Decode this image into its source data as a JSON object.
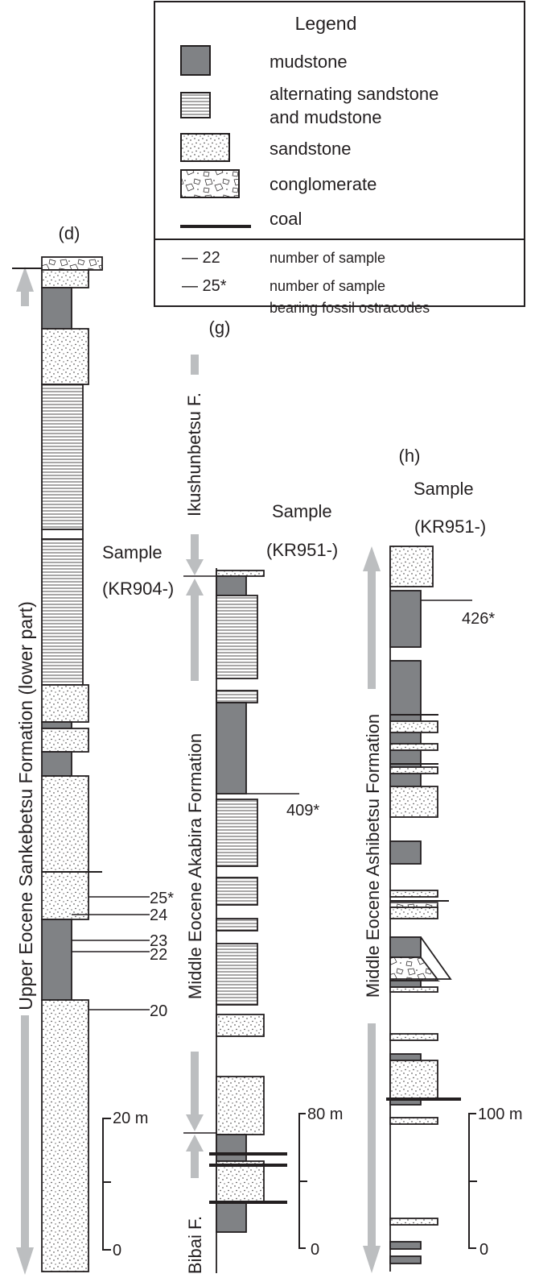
{
  "legend": {
    "title": "Legend",
    "items": [
      {
        "label_lines": [
          "mudstone"
        ]
      },
      {
        "label_lines": [
          "alternating sandstone",
          "and mudstone"
        ]
      },
      {
        "label_lines": [
          "sandstone"
        ]
      },
      {
        "label_lines": [
          "conglomerate"
        ]
      },
      {
        "label_lines": [
          "coal"
        ]
      },
      {
        "key": "— 22",
        "label_lines": [
          "number of sample"
        ]
      },
      {
        "key": "— 25*",
        "label_lines": [
          "number of sample",
          "bearing fossil ostracodes"
        ]
      }
    ]
  },
  "columns": [
    {
      "id": "d",
      "label": "(d)",
      "sample_labels": [],
      "formations": [
        "Upper Eocene Sankebetsu Formation (lower part)"
      ],
      "samples": [
        "25*",
        "24",
        "23",
        "22",
        "20"
      ],
      "scale": {
        "top": "20 m",
        "bottom": "0"
      }
    },
    {
      "id": "g",
      "label": "(g)",
      "sample_labels": [
        "Sample",
        "(KR904-)",
        "Sample",
        "(KR951-)"
      ],
      "formations": [
        "Ikushunbetsu F.",
        "Middle Eocene Akabira Formation",
        "Bibai F."
      ],
      "samples": [
        "409*"
      ],
      "scale": {
        "top": "80 m",
        "bottom": "0"
      }
    },
    {
      "id": "h",
      "label": "(h)",
      "sample_labels": [
        "Sample",
        "(KR951-)"
      ],
      "formations": [
        "Middle Eocene Ashibetsu Formation"
      ],
      "samples": [
        "426*"
      ],
      "scale": {
        "top": "100 m",
        "bottom": "0"
      }
    }
  ],
  "colors": {
    "mudstone": "#808285",
    "arrow": "#bcbec0",
    "line": "#231f20",
    "background": "#ffffff"
  }
}
